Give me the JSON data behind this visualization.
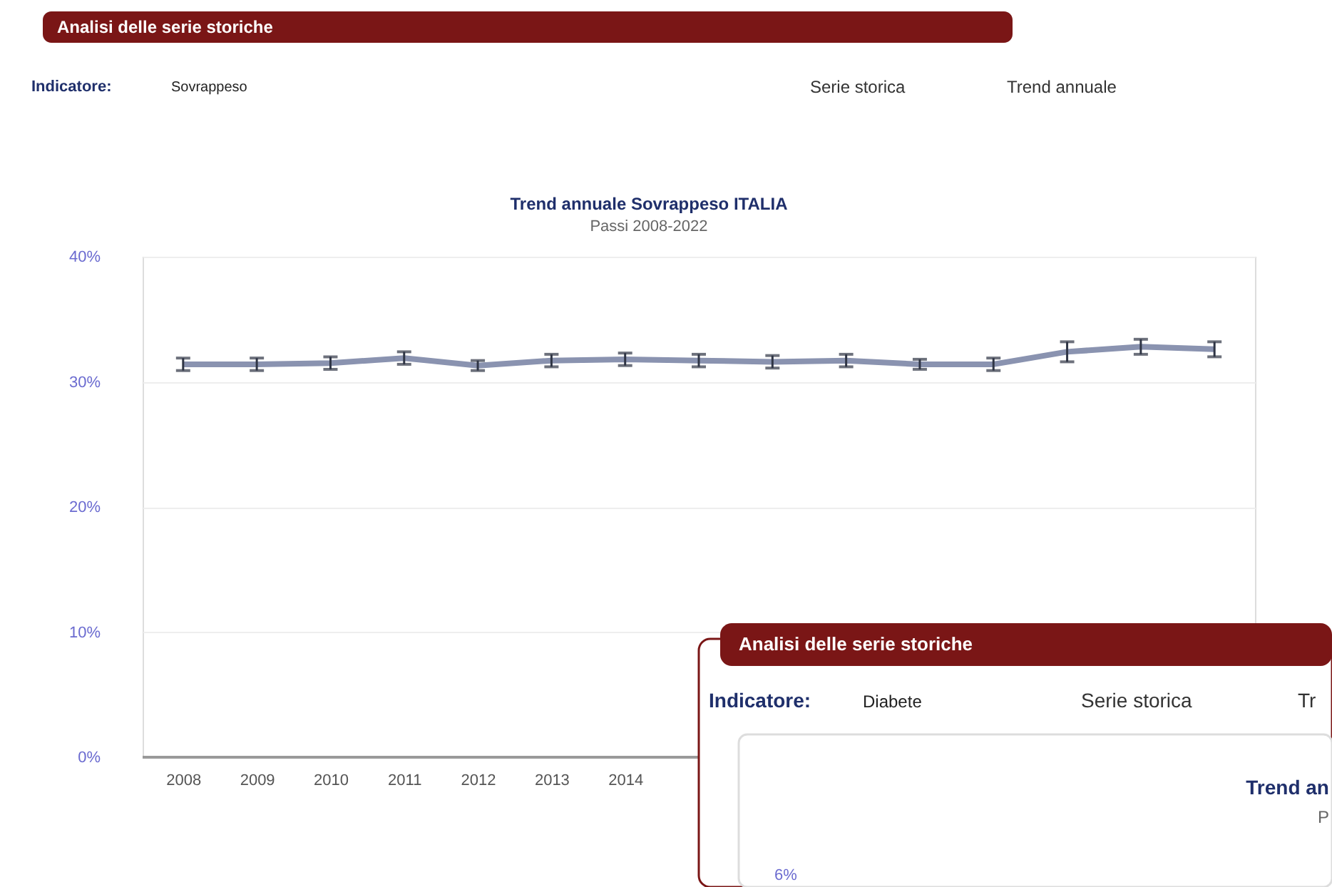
{
  "chart_data": {
    "type": "line",
    "title": "Trend annuale Sovrappeso ITALIA",
    "subtitle": "Passi 2008-2022",
    "categories": [
      "2008",
      "2009",
      "2010",
      "2011",
      "2012",
      "2013",
      "2014",
      null,
      null,
      null,
      null,
      null,
      null,
      null,
      null
    ],
    "series": [
      {
        "color": "#8a93b0",
        "values": [
          31.4,
          31.4,
          31.5,
          31.9,
          31.3,
          31.7,
          31.8,
          31.7,
          31.6,
          31.7,
          31.4,
          31.4,
          32.4,
          32.8,
          32.6
        ],
        "errors": [
          0.5,
          0.5,
          0.5,
          0.5,
          0.4,
          0.5,
          0.5,
          0.5,
          0.5,
          0.5,
          0.4,
          0.5,
          0.8,
          0.6,
          0.6
        ]
      }
    ],
    "ylim": [
      0,
      40
    ],
    "yticks": [
      {
        "value": 0,
        "label": "0%"
      },
      {
        "value": 10,
        "label": "10%"
      },
      {
        "value": 20,
        "label": "20%"
      },
      {
        "value": 30,
        "label": "30%"
      },
      {
        "value": 40,
        "label": "40%"
      }
    ],
    "grid": "y",
    "line_style": "solid",
    "annotations": [
      "Analisi delle serie storiche",
      "Indicatore:",
      "Sovrappeso",
      "Serie storica",
      "Trend annuale",
      "Analisi delle serie storiche",
      "Indicatore:",
      "Diabete",
      "Serie storica",
      "Tr",
      "Trend an",
      "P",
      "6%"
    ]
  }
}
